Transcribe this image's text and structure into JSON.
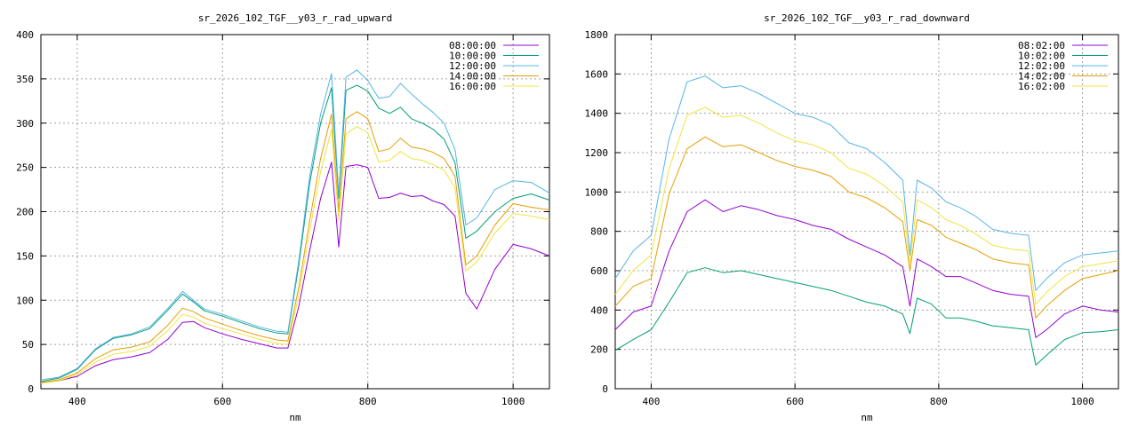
{
  "chart_data": [
    {
      "type": "line",
      "title": "sr_2026_102_TGF__y03_r_rad_upward",
      "xlabel": "nm",
      "ylabel": "",
      "xlim": [
        350,
        1050
      ],
      "ylim": [
        0,
        400
      ],
      "xticks": [
        400,
        600,
        800,
        1000
      ],
      "yticks": [
        0,
        50,
        100,
        150,
        200,
        250,
        300,
        350,
        400
      ],
      "grid": true,
      "legend_position": "top-right",
      "x": [
        350,
        375,
        400,
        425,
        450,
        475,
        500,
        525,
        545,
        560,
        575,
        600,
        625,
        650,
        675,
        690,
        705,
        720,
        735,
        750,
        760,
        770,
        785,
        800,
        815,
        830,
        845,
        860,
        875,
        890,
        905,
        920,
        935,
        950,
        975,
        1000,
        1025,
        1050
      ],
      "series": [
        {
          "name": "08:00:00",
          "color": "#9400d3",
          "values": [
            7,
            9,
            14,
            26,
            33,
            36,
            41,
            56,
            75,
            76,
            69,
            62,
            56,
            51,
            46,
            46,
            93,
            156,
            215,
            256,
            160,
            251,
            253,
            250,
            215,
            216,
            221,
            217,
            218,
            212,
            208,
            195,
            108,
            90,
            135,
            163,
            158,
            150
          ]
        },
        {
          "name": "10:00:00",
          "color": "#009e73",
          "values": [
            8,
            12,
            22,
            44,
            57,
            61,
            68,
            89,
            107,
            98,
            88,
            82,
            75,
            68,
            63,
            62,
            140,
            232,
            300,
            340,
            215,
            337,
            343,
            336,
            317,
            311,
            318,
            305,
            300,
            293,
            282,
            255,
            170,
            178,
            200,
            215,
            220,
            213
          ]
        },
        {
          "name": "12:00:00",
          "color": "#56b4e9",
          "values": [
            10,
            13,
            23,
            45,
            58,
            62,
            70,
            91,
            110,
            100,
            90,
            84,
            77,
            70,
            65,
            64,
            145,
            240,
            310,
            356,
            220,
            352,
            360,
            348,
            328,
            330,
            345,
            333,
            322,
            312,
            300,
            270,
            185,
            193,
            225,
            235,
            233,
            221
          ]
        },
        {
          "name": "14:00:00",
          "color": "#e69f00",
          "values": [
            7,
            10,
            18,
            34,
            44,
            47,
            53,
            72,
            91,
            87,
            80,
            73,
            66,
            60,
            55,
            54,
            115,
            190,
            260,
            310,
            200,
            305,
            313,
            305,
            268,
            271,
            283,
            273,
            271,
            267,
            260,
            240,
            140,
            150,
            185,
            209,
            205,
            202
          ]
        },
        {
          "name": "16:00:00",
          "color": "#f0e442",
          "values": [
            6,
            9,
            16,
            30,
            39,
            42,
            48,
            66,
            84,
            81,
            74,
            68,
            62,
            56,
            51,
            50,
            106,
            178,
            245,
            293,
            190,
            288,
            296,
            289,
            256,
            258,
            268,
            260,
            258,
            253,
            247,
            227,
            133,
            143,
            176,
            198,
            195,
            191
          ]
        }
      ]
    },
    {
      "type": "line",
      "title": "sr_2026_102_TGF__y03_r_rad_downward",
      "xlabel": "nm",
      "ylabel": "",
      "xlim": [
        350,
        1050
      ],
      "ylim": [
        0,
        1800
      ],
      "xticks": [
        400,
        600,
        800,
        1000
      ],
      "yticks": [
        0,
        200,
        400,
        600,
        800,
        1000,
        1200,
        1400,
        1600,
        1800
      ],
      "grid": true,
      "legend_position": "top-right",
      "x": [
        350,
        375,
        400,
        425,
        450,
        475,
        500,
        525,
        550,
        575,
        600,
        625,
        650,
        675,
        700,
        725,
        750,
        760,
        770,
        790,
        810,
        830,
        850,
        875,
        900,
        925,
        935,
        950,
        975,
        1000,
        1025,
        1050
      ],
      "series": [
        {
          "name": "08:02:00",
          "color": "#9400d3",
          "values": [
            300,
            390,
            420,
            700,
            900,
            960,
            900,
            930,
            910,
            880,
            860,
            830,
            810,
            760,
            720,
            680,
            620,
            420,
            660,
            620,
            570,
            570,
            540,
            500,
            480,
            470,
            260,
            300,
            380,
            420,
            400,
            390
          ]
        },
        {
          "name": "10:02:00",
          "color": "#009e73",
          "values": [
            195,
            250,
            300,
            440,
            590,
            615,
            590,
            600,
            580,
            560,
            540,
            520,
            500,
            470,
            440,
            420,
            380,
            280,
            460,
            430,
            360,
            360,
            345,
            320,
            310,
            300,
            120,
            170,
            250,
            285,
            290,
            300
          ]
        },
        {
          "name": "12:02:00",
          "color": "#56b4e9",
          "values": [
            560,
            700,
            780,
            1270,
            1560,
            1590,
            1530,
            1540,
            1500,
            1450,
            1400,
            1380,
            1340,
            1250,
            1220,
            1150,
            1060,
            680,
            1060,
            1020,
            950,
            920,
            880,
            810,
            790,
            780,
            500,
            560,
            640,
            680,
            690,
            700
          ]
        },
        {
          "name": "14:02:00",
          "color": "#e69f00",
          "values": [
            420,
            520,
            560,
            990,
            1220,
            1280,
            1230,
            1240,
            1200,
            1160,
            1130,
            1110,
            1080,
            1000,
            970,
            920,
            850,
            600,
            860,
            830,
            770,
            740,
            710,
            660,
            640,
            630,
            360,
            420,
            500,
            560,
            580,
            600
          ]
        },
        {
          "name": "16:02:00",
          "color": "#f0e442",
          "values": [
            480,
            600,
            680,
            1120,
            1390,
            1430,
            1380,
            1390,
            1350,
            1300,
            1260,
            1240,
            1200,
            1120,
            1090,
            1030,
            950,
            640,
            960,
            920,
            860,
            830,
            790,
            730,
            710,
            700,
            430,
            490,
            570,
            620,
            635,
            650
          ]
        }
      ]
    }
  ]
}
